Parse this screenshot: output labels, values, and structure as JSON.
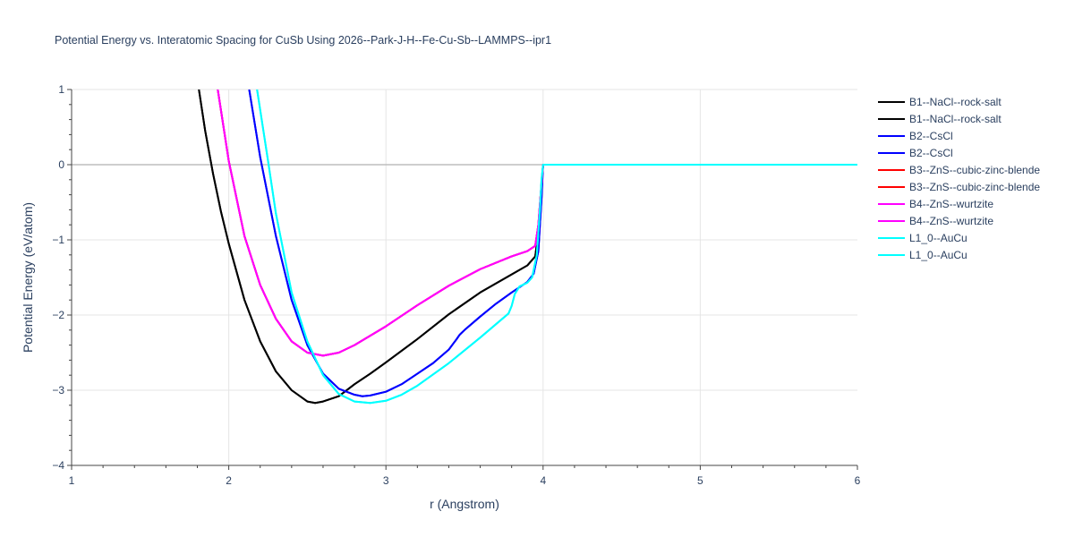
{
  "chart_data": {
    "type": "line",
    "title": "Potential Energy vs. Interatomic Spacing for CuSb Using 2026--Park-J-H--Fe-Cu-Sb--LAMMPS--ipr1",
    "xlabel": "r (Angstrom)",
    "ylabel": "Potential Energy (eV/atom)",
    "xlim": [
      1,
      6
    ],
    "ylim": [
      -4,
      1
    ],
    "xticks": [
      1,
      2,
      3,
      4,
      5,
      6
    ],
    "yticks": [
      -4,
      -3,
      -2,
      -1,
      0,
      1
    ],
    "grid": true,
    "legend_position": "right",
    "series": [
      {
        "name": "B1--NaCl--rock-salt",
        "color": "#000000",
        "x": [
          1.81,
          1.85,
          1.9,
          1.95,
          2.0,
          2.1,
          2.2,
          2.3,
          2.4,
          2.5,
          2.55,
          2.6,
          2.7,
          2.8,
          2.9,
          3.0,
          3.2,
          3.4,
          3.6,
          3.8,
          3.9,
          3.95,
          3.97,
          3.99,
          4.0,
          4.2,
          4.5,
          5.0,
          5.5,
          6.0
        ],
        "y": [
          1.0,
          0.45,
          -0.12,
          -0.62,
          -1.05,
          -1.8,
          -2.35,
          -2.75,
          -3.0,
          -3.15,
          -3.17,
          -3.15,
          -3.08,
          -2.92,
          -2.78,
          -2.63,
          -2.32,
          -1.99,
          -1.7,
          -1.46,
          -1.34,
          -1.22,
          -0.9,
          -0.3,
          0.0,
          0.0,
          0.0,
          0.0,
          0.0,
          0.0
        ]
      },
      {
        "name": "B1--NaCl--rock-salt",
        "color": "#000000",
        "x": [
          1.81,
          1.85,
          1.9,
          1.95,
          2.0,
          2.1,
          2.2,
          2.3,
          2.4,
          2.5,
          2.55,
          2.6,
          2.7,
          2.8,
          2.9,
          3.0,
          3.2,
          3.4,
          3.6,
          3.8,
          3.9,
          3.95,
          3.97,
          3.99,
          4.0,
          4.2,
          4.5,
          5.0,
          5.5,
          6.0
        ],
        "y": [
          1.0,
          0.45,
          -0.12,
          -0.62,
          -1.05,
          -1.8,
          -2.35,
          -2.75,
          -3.0,
          -3.15,
          -3.17,
          -3.15,
          -3.08,
          -2.92,
          -2.78,
          -2.63,
          -2.32,
          -1.99,
          -1.7,
          -1.46,
          -1.34,
          -1.22,
          -0.9,
          -0.3,
          0.0,
          0.0,
          0.0,
          0.0,
          0.0,
          0.0
        ]
      },
      {
        "name": "B2--CsCl",
        "color": "#0000ff",
        "x": [
          2.13,
          2.2,
          2.3,
          2.4,
          2.5,
          2.6,
          2.7,
          2.8,
          2.85,
          2.9,
          3.0,
          3.1,
          3.2,
          3.3,
          3.4,
          3.45,
          3.47,
          3.5,
          3.6,
          3.7,
          3.8,
          3.9,
          3.94,
          3.97,
          3.99,
          4.0,
          4.2,
          4.5,
          5.0,
          5.5,
          6.0
        ],
        "y": [
          1.0,
          0.1,
          -0.95,
          -1.8,
          -2.4,
          -2.78,
          -2.98,
          -3.06,
          -3.08,
          -3.07,
          -3.02,
          -2.92,
          -2.78,
          -2.64,
          -2.46,
          -2.32,
          -2.26,
          -2.2,
          -2.02,
          -1.85,
          -1.7,
          -1.56,
          -1.45,
          -1.15,
          -0.45,
          0.0,
          0.0,
          0.0,
          0.0,
          0.0,
          0.0
        ]
      },
      {
        "name": "B2--CsCl",
        "color": "#0000ff",
        "x": [
          2.13,
          2.2,
          2.3,
          2.4,
          2.5,
          2.6,
          2.7,
          2.8,
          2.85,
          2.9,
          3.0,
          3.1,
          3.2,
          3.3,
          3.4,
          3.45,
          3.47,
          3.5,
          3.6,
          3.7,
          3.8,
          3.9,
          3.94,
          3.97,
          3.99,
          4.0,
          4.2,
          4.5,
          5.0,
          5.5,
          6.0
        ],
        "y": [
          1.0,
          0.1,
          -0.95,
          -1.8,
          -2.4,
          -2.78,
          -2.98,
          -3.06,
          -3.08,
          -3.07,
          -3.02,
          -2.92,
          -2.78,
          -2.64,
          -2.46,
          -2.32,
          -2.26,
          -2.2,
          -2.02,
          -1.85,
          -1.7,
          -1.56,
          -1.45,
          -1.15,
          -0.45,
          0.0,
          0.0,
          0.0,
          0.0,
          0.0,
          0.0
        ]
      },
      {
        "name": "B3--ZnS--cubic-zinc-blende",
        "color": "#ff0000",
        "x": [
          1.93,
          2.0,
          2.1,
          2.2,
          2.3,
          2.4,
          2.5,
          2.6,
          2.7,
          2.8,
          3.0,
          3.2,
          3.4,
          3.6,
          3.8,
          3.9,
          3.95,
          3.97,
          3.99,
          4.0,
          4.2,
          4.5,
          5.0,
          5.5,
          6.0
        ],
        "y": [
          1.0,
          0.05,
          -0.95,
          -1.6,
          -2.05,
          -2.35,
          -2.5,
          -2.54,
          -2.5,
          -2.4,
          -2.15,
          -1.87,
          -1.61,
          -1.39,
          -1.22,
          -1.15,
          -1.08,
          -0.8,
          -0.25,
          0.0,
          0.0,
          0.0,
          0.0,
          0.0,
          0.0
        ]
      },
      {
        "name": "B3--ZnS--cubic-zinc-blende",
        "color": "#ff0000",
        "x": [
          1.93,
          2.0,
          2.1,
          2.2,
          2.3,
          2.4,
          2.5,
          2.6,
          2.7,
          2.8,
          3.0,
          3.2,
          3.4,
          3.6,
          3.8,
          3.9,
          3.95,
          3.97,
          3.99,
          4.0,
          4.2,
          4.5,
          5.0,
          5.5,
          6.0
        ],
        "y": [
          1.0,
          0.05,
          -0.95,
          -1.6,
          -2.05,
          -2.35,
          -2.5,
          -2.54,
          -2.5,
          -2.4,
          -2.15,
          -1.87,
          -1.61,
          -1.39,
          -1.22,
          -1.15,
          -1.08,
          -0.8,
          -0.25,
          0.0,
          0.0,
          0.0,
          0.0,
          0.0,
          0.0
        ]
      },
      {
        "name": "B4--ZnS--wurtzite",
        "color": "#ff00ff",
        "x": [
          1.93,
          2.0,
          2.1,
          2.2,
          2.3,
          2.4,
          2.5,
          2.6,
          2.7,
          2.8,
          3.0,
          3.2,
          3.4,
          3.6,
          3.8,
          3.9,
          3.95,
          3.97,
          3.99,
          4.0,
          4.2,
          4.5,
          5.0,
          5.5,
          6.0
        ],
        "y": [
          1.0,
          0.05,
          -0.95,
          -1.6,
          -2.05,
          -2.35,
          -2.5,
          -2.54,
          -2.5,
          -2.4,
          -2.15,
          -1.87,
          -1.61,
          -1.39,
          -1.22,
          -1.15,
          -1.08,
          -0.8,
          -0.25,
          0.0,
          0.0,
          0.0,
          0.0,
          0.0,
          0.0
        ]
      },
      {
        "name": "B4--ZnS--wurtzite",
        "color": "#ff00ff",
        "x": [
          1.93,
          2.0,
          2.1,
          2.2,
          2.3,
          2.4,
          2.5,
          2.6,
          2.7,
          2.8,
          3.0,
          3.2,
          3.4,
          3.6,
          3.8,
          3.9,
          3.95,
          3.97,
          3.99,
          4.0,
          4.2,
          4.5,
          5.0,
          5.5,
          6.0
        ],
        "y": [
          1.0,
          0.05,
          -0.95,
          -1.6,
          -2.05,
          -2.35,
          -2.5,
          -2.54,
          -2.5,
          -2.4,
          -2.15,
          -1.87,
          -1.61,
          -1.39,
          -1.22,
          -1.15,
          -1.08,
          -0.8,
          -0.25,
          0.0,
          0.0,
          0.0,
          0.0,
          0.0,
          0.0
        ]
      },
      {
        "name": "L1_0--AuCu",
        "color": "#00ffff",
        "x": [
          2.18,
          2.25,
          2.3,
          2.4,
          2.5,
          2.6,
          2.7,
          2.8,
          2.9,
          3.0,
          3.1,
          3.2,
          3.4,
          3.6,
          3.78,
          3.8,
          3.82,
          3.85,
          3.9,
          3.93,
          3.96,
          3.98,
          3.99,
          4.0,
          4.2,
          4.5,
          5.0,
          5.5,
          6.0
        ],
        "y": [
          1.0,
          0.05,
          -0.65,
          -1.7,
          -2.35,
          -2.8,
          -3.05,
          -3.15,
          -3.17,
          -3.14,
          -3.06,
          -2.94,
          -2.64,
          -2.3,
          -1.98,
          -1.88,
          -1.72,
          -1.62,
          -1.57,
          -1.5,
          -1.2,
          -0.6,
          -0.2,
          0.0,
          0.0,
          0.0,
          0.0,
          0.0,
          0.0
        ]
      },
      {
        "name": "L1_0--AuCu",
        "color": "#00ffff",
        "x": [
          2.18,
          2.25,
          2.3,
          2.4,
          2.5,
          2.6,
          2.7,
          2.8,
          2.9,
          3.0,
          3.1,
          3.2,
          3.4,
          3.6,
          3.78,
          3.8,
          3.82,
          3.85,
          3.9,
          3.93,
          3.96,
          3.98,
          3.99,
          4.0,
          4.2,
          4.5,
          5.0,
          5.5,
          6.0
        ],
        "y": [
          1.0,
          0.05,
          -0.65,
          -1.7,
          -2.35,
          -2.8,
          -3.05,
          -3.15,
          -3.17,
          -3.14,
          -3.06,
          -2.94,
          -2.64,
          -2.3,
          -1.98,
          -1.88,
          -1.72,
          -1.62,
          -1.57,
          -1.5,
          -1.2,
          -0.6,
          -0.2,
          0.0,
          0.0,
          0.0,
          0.0,
          0.0,
          0.0
        ]
      }
    ]
  }
}
